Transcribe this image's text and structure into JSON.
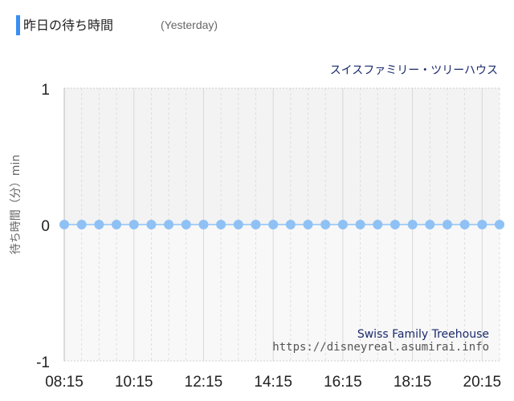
{
  "header": {
    "title": "昨日の待ち時間",
    "subtitle": "(Yesterday)",
    "accent_color": "#3a8ef2"
  },
  "chart_data": {
    "type": "scatter",
    "title": "スイスファミリー・ツリーハウス",
    "ylabel": "待ち時間（分）min",
    "xlabel": "",
    "ylim": [
      -1,
      1
    ],
    "y_ticks": [
      1,
      0,
      -1
    ],
    "x_tick_labels": [
      "08:15",
      "10:15",
      "12:15",
      "14:15",
      "16:15",
      "18:15",
      "20:15"
    ],
    "x": [
      "08:15",
      "08:45",
      "09:15",
      "09:45",
      "10:15",
      "10:45",
      "11:15",
      "11:45",
      "12:15",
      "12:45",
      "13:15",
      "13:45",
      "14:15",
      "14:45",
      "15:15",
      "15:45",
      "16:15",
      "16:45",
      "17:15",
      "17:45",
      "18:15",
      "18:45",
      "19:15",
      "19:45",
      "20:15",
      "20:45"
    ],
    "series": [
      {
        "values": [
          0,
          0,
          0,
          0,
          0,
          0,
          0,
          0,
          0,
          0,
          0,
          0,
          0,
          0,
          0,
          0,
          0,
          0,
          0,
          0,
          0,
          0,
          0,
          0,
          0,
          0
        ],
        "color": "#8fc1f5"
      }
    ],
    "grid": true,
    "watermark_name": "Swiss Family Treehouse",
    "watermark_url": "https://disneyreal.asumirai.info",
    "colors": {
      "title": "#1a2a6c",
      "zero_line": "#8fc1f5",
      "grid": "#d8d8d8",
      "background": "#f5f5f5"
    }
  }
}
